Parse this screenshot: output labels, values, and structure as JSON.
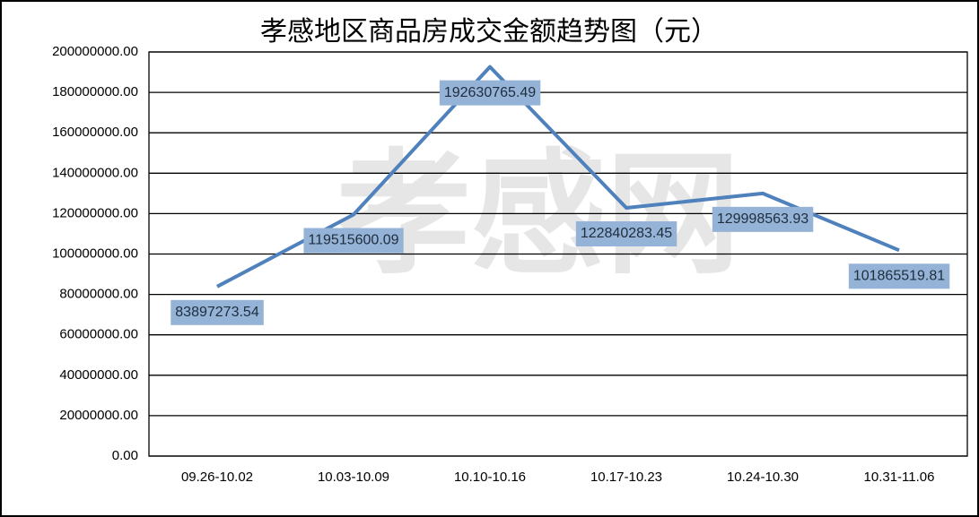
{
  "chart_data": {
    "type": "line",
    "title": "孝感地区商品房成交金额趋势图（元）",
    "watermark": "孝感网",
    "categories": [
      "09.26-10.02",
      "10.03-10.09",
      "10.10-10.16",
      "10.17-10.23",
      "10.24-10.30",
      "10.31-11.06"
    ],
    "series": [
      {
        "color": "#4f81bd",
        "values": [
          83897273.54,
          119515600.09,
          192630765.49,
          122840283.45,
          129998563.93,
          101865519.81
        ]
      }
    ],
    "ylim": [
      0,
      200000000
    ],
    "yticks": [
      {
        "value": 0,
        "label": "0.00"
      },
      {
        "value": 20000000,
        "label": "20000000.00"
      },
      {
        "value": 40000000,
        "label": "40000000.00"
      },
      {
        "value": 60000000,
        "label": "60000000.00"
      },
      {
        "value": 80000000,
        "label": "80000000.00"
      },
      {
        "value": 100000000,
        "label": "100000000.00"
      },
      {
        "value": 120000000,
        "label": "120000000.00"
      },
      {
        "value": 140000000,
        "label": "140000000.00"
      },
      {
        "value": 160000000,
        "label": "160000000.00"
      },
      {
        "value": 180000000,
        "label": "180000000.00"
      },
      {
        "value": 200000000,
        "label": "200000000.00"
      }
    ],
    "grid": true,
    "label_color": "#95b3d7"
  }
}
